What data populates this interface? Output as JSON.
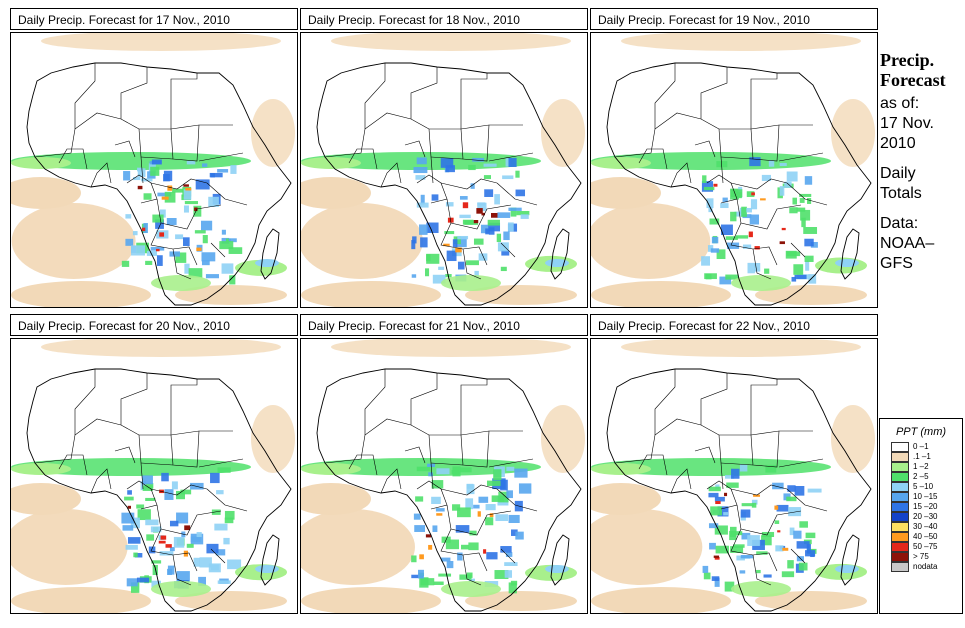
{
  "panels": [
    {
      "title": "Daily Precip. Forecast for  17 Nov., 2010",
      "intensity": 1.0
    },
    {
      "title": "Daily Precip. Forecast for  18 Nov., 2010",
      "intensity": 0.8
    },
    {
      "title": "Daily Precip. Forecast for  19 Nov., 2010",
      "intensity": 0.7
    },
    {
      "title": "Daily Precip. Forecast for  20 Nov., 2010",
      "intensity": 0.7
    },
    {
      "title": "Daily Precip. Forecast for  21 Nov., 2010",
      "intensity": 0.65
    },
    {
      "title": "Daily Precip. Forecast for  22 Nov., 2010",
      "intensity": 0.75
    }
  ],
  "side": {
    "title_line1": "Precip.",
    "title_line2": "Forecast",
    "asof_label": "as of:",
    "asof_date1": "17 Nov.",
    "asof_date2": "2010",
    "totals1": "Daily",
    "totals2": "Totals",
    "data1": "Data:",
    "data2": "NOAA–",
    "data3": "GFS"
  },
  "legend": {
    "title": "PPT (mm)",
    "items": [
      {
        "label": "0 –1",
        "color": "#ffffff"
      },
      {
        "label": ".1 –1",
        "color": "#f2d9b8"
      },
      {
        "label": "1 –2",
        "color": "#a8f08c"
      },
      {
        "label": "2 –5",
        "color": "#4fe06a"
      },
      {
        "label": "5 –10",
        "color": "#8fd2f5"
      },
      {
        "label": "10 –15",
        "color": "#58a6ee"
      },
      {
        "label": "15 –20",
        "color": "#2f74e6"
      },
      {
        "label": "20 –30",
        "color": "#1442c8"
      },
      {
        "label": "30 –40",
        "color": "#ffe061"
      },
      {
        "label": "40 –50",
        "color": "#ff9a1f"
      },
      {
        "label": "50 –75",
        "color": "#e5281a"
      },
      {
        "label": "> 75",
        "color": "#8c1208"
      },
      {
        "label": "nodata",
        "color": "#c8c8c8"
      }
    ]
  }
}
